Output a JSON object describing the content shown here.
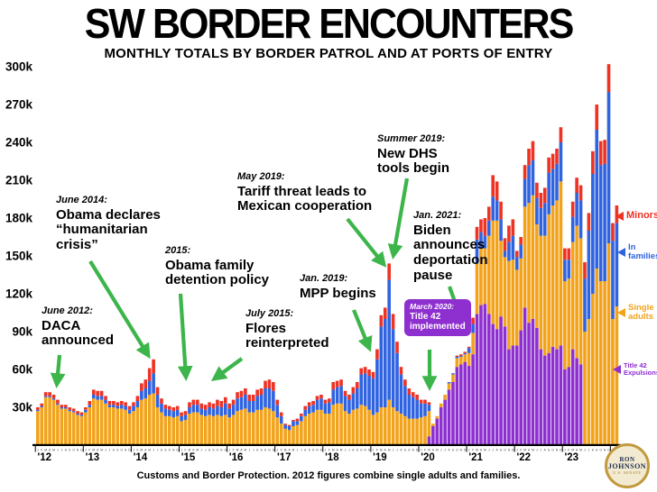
{
  "header": {
    "title": "SW BORDER ENCOUNTERS",
    "subtitle": "MONTHLY TOTALS BY BORDER PATROL AND AT PORTS OF ENTRY"
  },
  "footer": {
    "source": "Customs and Border Protection. 2012 figures combine single adults and families."
  },
  "logo": {
    "line1": "RON",
    "line2": "JOHNSON",
    "line3": "U.S. SENATE"
  },
  "y_axis": {
    "tick_labels": [
      "30k",
      "60k",
      "90k",
      "120k",
      "150k",
      "180k",
      "210k",
      "240k",
      "270k",
      "300k"
    ],
    "tick_values": [
      30,
      60,
      90,
      120,
      150,
      180,
      210,
      240,
      270,
      300
    ],
    "unit": "thousands of encounters"
  },
  "x_axis": {
    "years": [
      "'12",
      "'13",
      "'14",
      "'15",
      "'16",
      "'17",
      "'18",
      "'19",
      "'20",
      "'21",
      "'22",
      "'23",
      "'24"
    ],
    "month_letters": "JFMAMJJASOND"
  },
  "legend": [
    {
      "id": "minors",
      "lines": [
        "Minors"
      ],
      "color": "#ee3223"
    },
    {
      "id": "in-families",
      "lines": [
        "In",
        "families"
      ],
      "color": "#2f63e0"
    },
    {
      "id": "single-adults",
      "lines": [
        "Single",
        "adults"
      ],
      "color": "#f2a31b"
    },
    {
      "id": "title42",
      "lines": [
        "Title 42",
        "Expulsions"
      ],
      "color": "#8e2fd0"
    }
  ],
  "annotations": [
    {
      "id": "daca",
      "date": "June 2012:",
      "lines": [
        "DACA",
        "announced"
      ]
    },
    {
      "id": "humanitarian",
      "date": "June 2014:",
      "lines": [
        "Obama declares",
        "“humanitarian",
        "crisis”"
      ]
    },
    {
      "id": "detention",
      "date": "2015:",
      "lines": [
        "Obama family",
        "detention policy"
      ]
    },
    {
      "id": "flores",
      "date": "July 2015:",
      "lines": [
        "Flores",
        "reinterpreted"
      ]
    },
    {
      "id": "tariff",
      "date": "May 2019:",
      "lines": [
        "Tariff threat leads to",
        "Mexican cooperation"
      ]
    },
    {
      "id": "mpp",
      "date": "Jan. 2019:",
      "lines": [
        "MPP begins"
      ]
    },
    {
      "id": "dhs",
      "date": "Summer 2019:",
      "lines": [
        "New DHS",
        "tools begin"
      ]
    },
    {
      "id": "biden",
      "date": "Jan. 2021:",
      "lines": [
        "Biden",
        "announces",
        "deportation",
        "pause"
      ]
    },
    {
      "id": "title42-box",
      "date": "March 2020:",
      "lines": [
        "Title 42",
        "implemented"
      ]
    }
  ],
  "chart_data": {
    "type": "bar",
    "stacked": true,
    "title": "SW BORDER ENCOUNTERS",
    "subtitle": "MONTHLY TOTALS BY BORDER PATROL AND AT PORTS OF ENTRY",
    "x_start": "2012-01",
    "x_end": "2024-02",
    "months_per_year_labels": "JFMAMJJASOND",
    "value_unit": "thousands per month",
    "ylim": [
      0,
      310
    ],
    "grid": false,
    "legend_position": "right",
    "series": [
      {
        "name": "Title 42 Expulsions",
        "color": "#8e2fd0",
        "values": [
          0,
          0,
          0,
          0,
          0,
          0,
          0,
          0,
          0,
          0,
          0,
          0,
          0,
          0,
          0,
          0,
          0,
          0,
          0,
          0,
          0,
          0,
          0,
          0,
          0,
          0,
          0,
          0,
          0,
          0,
          0,
          0,
          0,
          0,
          0,
          0,
          0,
          0,
          0,
          0,
          0,
          0,
          0,
          0,
          0,
          0,
          0,
          0,
          0,
          0,
          0,
          0,
          0,
          0,
          0,
          0,
          0,
          0,
          0,
          0,
          0,
          0,
          0,
          0,
          0,
          0,
          0,
          0,
          0,
          0,
          0,
          0,
          0,
          0,
          0,
          0,
          0,
          0,
          0,
          0,
          0,
          0,
          0,
          0,
          0,
          0,
          0,
          0,
          0,
          0,
          0,
          0,
          0,
          0,
          0,
          0,
          0,
          0,
          7,
          15,
          21,
          30,
          36,
          44,
          50,
          62,
          64,
          66,
          63,
          72,
          104,
          111,
          112,
          104,
          96,
          92,
          102,
          94,
          76,
          79,
          79,
          91,
          109,
          97,
          100,
          93,
          76,
          71,
          73,
          78,
          76,
          79,
          60,
          62,
          76,
          69,
          64,
          0,
          0,
          0,
          0,
          0,
          0,
          0,
          0,
          0
        ]
      },
      {
        "name": "Single adults",
        "color": "#f2a31b",
        "values": [
          27,
          30,
          38,
          38,
          36,
          32,
          29,
          29,
          27,
          26,
          24,
          23,
          26,
          30,
          37,
          36,
          36,
          33,
          30,
          30,
          29,
          29,
          28,
          25,
          27,
          30,
          36,
          37,
          40,
          41,
          30,
          26,
          23,
          23,
          22,
          23,
          19,
          20,
          25,
          26,
          26,
          24,
          23,
          24,
          23,
          24,
          23,
          24,
          22,
          24,
          27,
          28,
          29,
          26,
          26,
          28,
          28,
          30,
          29,
          27,
          22,
          17,
          13,
          12,
          15,
          16,
          19,
          23,
          25,
          26,
          28,
          28,
          25,
          25,
          32,
          33,
          33,
          27,
          25,
          28,
          29,
          32,
          31,
          28,
          24,
          26,
          30,
          30,
          36,
          30,
          27,
          25,
          23,
          21,
          21,
          21,
          22,
          23,
          20,
          2,
          2,
          3,
          4,
          5,
          6,
          7,
          6,
          6,
          10,
          17,
          40,
          45,
          44,
          62,
          82,
          86,
          60,
          55,
          70,
          68,
          60,
          57,
          80,
          95,
          98,
          82,
          90,
          95,
          110,
          112,
          118,
          130,
          70,
          70,
          85,
          105,
          100,
          90,
          100,
          120,
          140,
          130,
          130,
          160,
          100,
          110
        ]
      },
      {
        "name": "In families",
        "color": "#2f63e0",
        "values": [
          1,
          1,
          1,
          1,
          1,
          1,
          1,
          1,
          1,
          1,
          1,
          1,
          2,
          2,
          3,
          3,
          3,
          3,
          2,
          2,
          2,
          3,
          3,
          3,
          4,
          5,
          7,
          8,
          11,
          16,
          10,
          7,
          6,
          5,
          5,
          5,
          4,
          4,
          5,
          6,
          6,
          5,
          5,
          6,
          6,
          7,
          7,
          9,
          7,
          8,
          10,
          10,
          11,
          9,
          9,
          11,
          12,
          15,
          16,
          16,
          10,
          6,
          3,
          3,
          4,
          3,
          4,
          5,
          6,
          6,
          8,
          9,
          8,
          9,
          12,
          13,
          14,
          12,
          11,
          13,
          16,
          24,
          26,
          27,
          29,
          42,
          64,
          70,
          95,
          62,
          46,
          31,
          24,
          19,
          17,
          15,
          11,
          10,
          5,
          0,
          0,
          0,
          0,
          1,
          1,
          1,
          1,
          1,
          4,
          7,
          19,
          13,
          10,
          12,
          19,
          16,
          17,
          5,
          15,
          19,
          10,
          11,
          22,
          30,
          28,
          21,
          22,
          26,
          33,
          29,
          29,
          31,
          17,
          15,
          20,
          26,
          30,
          42,
          70,
          95,
          110,
          92,
          93,
          120,
          62,
          66
        ]
      },
      {
        "name": "Minors",
        "color": "#ee3223",
        "values": [
          2,
          2,
          3,
          3,
          3,
          3,
          2,
          2,
          2,
          2,
          2,
          2,
          2,
          3,
          4,
          4,
          4,
          3,
          3,
          3,
          3,
          3,
          3,
          3,
          3,
          4,
          6,
          7,
          10,
          11,
          6,
          4,
          3,
          3,
          3,
          3,
          3,
          3,
          4,
          4,
          4,
          4,
          4,
          4,
          4,
          5,
          5,
          5,
          4,
          4,
          5,
          5,
          5,
          5,
          5,
          5,
          5,
          6,
          7,
          7,
          4,
          3,
          1,
          1,
          1,
          2,
          2,
          3,
          3,
          3,
          3,
          3,
          3,
          3,
          6,
          5,
          5,
          4,
          4,
          5,
          5,
          5,
          5,
          5,
          5,
          8,
          9,
          9,
          13,
          12,
          9,
          6,
          5,
          5,
          4,
          4,
          3,
          3,
          2,
          0,
          0,
          0,
          0,
          0,
          0,
          1,
          1,
          1,
          1,
          5,
          10,
          10,
          14,
          11,
          17,
          15,
          14,
          10,
          13,
          13,
          5,
          6,
          11,
          13,
          15,
          12,
          12,
          12,
          12,
          12,
          12,
          12,
          9,
          9,
          12,
          12,
          12,
          13,
          14,
          18,
          20,
          19,
          19,
          22,
          14,
          14
        ]
      }
    ]
  }
}
